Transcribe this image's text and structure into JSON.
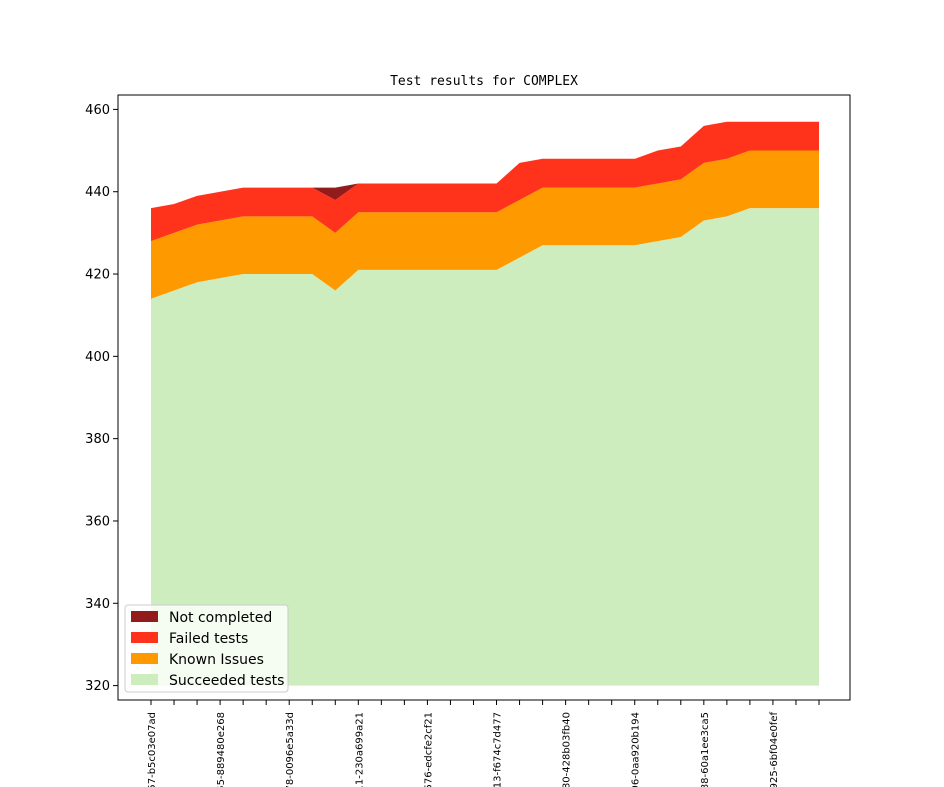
{
  "chart_data": {
    "type": "area",
    "title": "Test results for COMPLEX",
    "xlabel": "",
    "ylabel": "",
    "ylim": [
      316.5,
      463.5
    ],
    "yticks": [
      320,
      340,
      360,
      380,
      400,
      420,
      440,
      460
    ],
    "grid": false,
    "legend_position": "lower-left",
    "x_tick_labels": [
      {
        "index": 0,
        "label": "57-b5c03e07ad"
      },
      {
        "index": 3,
        "label": "55-889480e268"
      },
      {
        "index": 6,
        "label": "78-0096e5a33d"
      },
      {
        "index": 9,
        "label": "11-230a699a21"
      },
      {
        "index": 12,
        "label": "576-edcfe2cf21"
      },
      {
        "index": 15,
        "label": "13-f674c7d477"
      },
      {
        "index": 18,
        "label": "80-428b03fb40"
      },
      {
        "index": 21,
        "label": "96-0aa920b194"
      },
      {
        "index": 24,
        "label": "88-60a1ee3ca5"
      },
      {
        "index": 27,
        "label": "925-6bf04e0fef"
      }
    ],
    "x": [
      0,
      1,
      2,
      3,
      4,
      5,
      6,
      7,
      8,
      9,
      10,
      11,
      12,
      13,
      14,
      15,
      16,
      17,
      18,
      19,
      20,
      21,
      22,
      23,
      24,
      25,
      26,
      27,
      28,
      29
    ],
    "baseline": 320,
    "series": [
      {
        "name": "Succeeded tests",
        "color": "#cdedbe",
        "values": [
          414,
          416,
          418,
          419,
          420,
          420,
          420,
          420,
          416,
          421,
          421,
          421,
          421,
          421,
          421,
          421,
          424,
          427,
          427,
          427,
          427,
          427,
          428,
          429,
          433,
          434,
          436,
          436,
          436,
          436
        ]
      },
      {
        "name": "Known Issues",
        "color": "#ff9900",
        "values": [
          14,
          14,
          14,
          14,
          14,
          14,
          14,
          14,
          14,
          14,
          14,
          14,
          14,
          14,
          14,
          14,
          14,
          14,
          14,
          14,
          14,
          14,
          14,
          14,
          14,
          14,
          14,
          14,
          14,
          14
        ]
      },
      {
        "name": "Failed tests",
        "color": "#ff331c",
        "values": [
          8,
          7,
          7,
          7,
          7,
          7,
          7,
          7,
          8,
          7,
          7,
          7,
          7,
          7,
          7,
          7,
          9,
          7,
          7,
          7,
          7,
          7,
          8,
          8,
          9,
          9,
          7,
          7,
          7,
          7
        ]
      },
      {
        "name": "Not completed",
        "color": "#921b1b",
        "values": [
          0,
          0,
          0,
          0,
          0,
          0,
          0,
          0,
          3,
          0,
          0,
          0,
          0,
          0,
          0,
          0,
          0,
          0,
          0,
          0,
          0,
          0,
          0,
          0,
          0,
          0,
          0,
          0,
          0,
          0
        ]
      }
    ],
    "legend": [
      "Not completed",
      "Failed tests",
      "Known Issues",
      "Succeeded tests"
    ]
  }
}
